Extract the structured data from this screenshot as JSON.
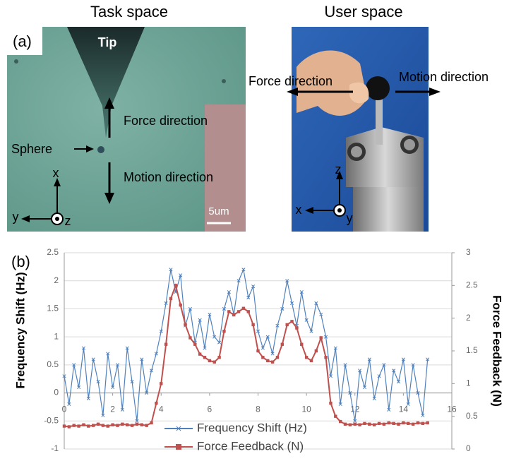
{
  "panel_a": {
    "label": "(a)",
    "task_space": {
      "title": "Task space",
      "tip": "Tip",
      "force_direction": "Force direction",
      "motion_direction": "Motion direction",
      "sphere": "Sphere",
      "axes": {
        "x": "x",
        "y": "y",
        "z": "z"
      },
      "scale_bar": "5um"
    },
    "user_space": {
      "title": "User space",
      "force_direction": "Force direction",
      "motion_direction": "Motion direction",
      "axes": {
        "x": "x",
        "y": "y",
        "z": "z"
      }
    }
  },
  "chart_data": {
    "type": "line",
    "label": "(b)",
    "y_label": "Frequency Shift (Hz)",
    "y2_label": "Force Feedback (N)",
    "x": [
      0,
      0.2,
      0.4,
      0.6,
      0.8,
      1,
      1.2,
      1.4,
      1.6,
      1.8,
      2,
      2.2,
      2.4,
      2.6,
      2.8,
      3,
      3.2,
      3.4,
      3.6,
      3.8,
      4,
      4.2,
      4.4,
      4.6,
      4.8,
      5,
      5.2,
      5.4,
      5.6,
      5.8,
      6,
      6.2,
      6.4,
      6.6,
      6.8,
      7,
      7.2,
      7.4,
      7.6,
      7.8,
      8,
      8.2,
      8.4,
      8.6,
      8.8,
      9,
      9.2,
      9.4,
      9.6,
      9.8,
      10,
      10.2,
      10.4,
      10.6,
      10.8,
      11,
      11.2,
      11.4,
      11.6,
      11.8,
      12,
      12.2,
      12.4,
      12.6,
      12.8,
      13,
      13.2,
      13.4,
      13.6,
      13.8,
      14,
      14.2,
      14.4,
      14.6,
      14.8,
      15
    ],
    "series": [
      {
        "name": "Frequency Shift (Hz)",
        "color": "#4f81bd",
        "marker": "x",
        "values": [
          0.3,
          -0.2,
          0.5,
          0.1,
          0.8,
          -0.1,
          0.6,
          0.2,
          -0.4,
          0.7,
          0.1,
          0.5,
          -0.3,
          0.8,
          0.2,
          -0.5,
          0.6,
          0,
          0.4,
          0.7,
          1.1,
          1.6,
          2.2,
          1.8,
          2.1,
          1.2,
          1.5,
          0.9,
          1.3,
          0.8,
          1.4,
          1,
          0.9,
          1.5,
          1.8,
          1.4,
          2,
          2.2,
          1.7,
          1.9,
          1.1,
          0.8,
          1,
          0.7,
          1.2,
          1.5,
          2,
          1.6,
          1.2,
          1.8,
          1.3,
          1.1,
          1.6,
          1.4,
          1,
          0.3,
          0.8,
          -0.2,
          0.5,
          0,
          -0.5,
          0.4,
          0.1,
          0.6,
          -0.1,
          0.3,
          0.5,
          -0.3,
          0.4,
          0.2,
          0.6,
          -0.2,
          0.5,
          0,
          -0.4,
          0.6
        ]
      },
      {
        "name": "Force Feedback (N)",
        "color": "#c0504d",
        "marker": "square",
        "axis": "y2",
        "values": [
          0.35,
          0.34,
          0.36,
          0.35,
          0.37,
          0.35,
          0.36,
          0.38,
          0.36,
          0.35,
          0.37,
          0.36,
          0.38,
          0.37,
          0.36,
          0.38,
          0.37,
          0.36,
          0.4,
          0.7,
          1,
          1.6,
          2.3,
          2.5,
          2.2,
          1.9,
          1.7,
          1.6,
          1.45,
          1.4,
          1.35,
          1.33,
          1.4,
          1.8,
          2.1,
          2.05,
          2.1,
          2.15,
          2.1,
          1.9,
          1.5,
          1.4,
          1.35,
          1.33,
          1.4,
          1.6,
          1.9,
          1.95,
          1.85,
          1.6,
          1.4,
          1.35,
          1.5,
          1.7,
          1.4,
          0.7,
          0.5,
          0.42,
          0.38,
          0.37,
          0.38,
          0.37,
          0.39,
          0.38,
          0.37,
          0.39,
          0.38,
          0.4,
          0.39,
          0.38,
          0.4,
          0.39,
          0.38,
          0.4,
          0.39,
          0.4
        ]
      }
    ],
    "xlim": [
      0,
      16
    ],
    "xticks": [
      0,
      2,
      4,
      6,
      8,
      10,
      12,
      14,
      16
    ],
    "ylim": [
      -1,
      2.5
    ],
    "yticks": [
      -1,
      -0.5,
      0,
      0.5,
      1,
      1.5,
      2,
      2.5
    ],
    "y2lim": [
      0,
      3
    ],
    "y2ticks": [
      0,
      0.5,
      1,
      1.5,
      2,
      2.5,
      3
    ],
    "grid": true,
    "legend": "bottom"
  }
}
